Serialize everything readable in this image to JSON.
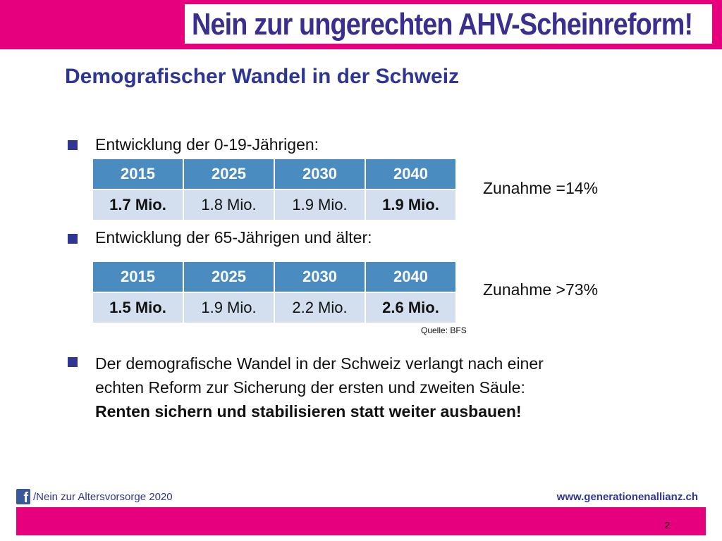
{
  "header": {
    "banner": "Nein zur ungerechten AHV-Scheinreform!",
    "brand_color": "#e6007e",
    "text_color": "#3a2f8e"
  },
  "slide": {
    "title": "Demografischer Wandel in der Schweiz"
  },
  "section1": {
    "bullet": "Entwicklung der 0-19-Jährigen:",
    "table": {
      "headers": [
        "2015",
        "2025",
        "2030",
        "2040"
      ],
      "values": [
        "1.7 Mio.",
        "1.8 Mio.",
        "1.9 Mio.",
        "1.9 Mio."
      ]
    },
    "note": "Zunahme =14%"
  },
  "section2": {
    "bullet": "Entwicklung der 65-Jährigen und älter:",
    "table": {
      "headers": [
        "2015",
        "2025",
        "2030",
        "2040"
      ],
      "values": [
        "1.5 Mio.",
        "1.9 Mio.",
        "2.2 Mio.",
        "2.6 Mio."
      ]
    },
    "note": "Zunahme >73%",
    "source": "Quelle: BFS"
  },
  "conclusion": {
    "line1": "Der demografische Wandel in der Schweiz verlangt nach einer",
    "line2": "echten Reform zur Sicherung der ersten und zweiten Säule:",
    "line3": "Renten sichern und stabilisieren statt weiter ausbauen!"
  },
  "footer": {
    "facebook_icon": "f",
    "left": "/Nein zur Altersvorsorge 2020",
    "right": "www.generationenallianz.ch",
    "page_number": "2"
  }
}
